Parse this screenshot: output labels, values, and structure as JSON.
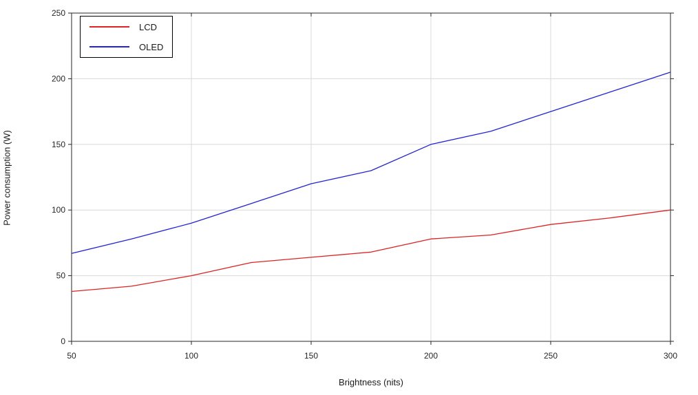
{
  "chart_data": {
    "type": "line",
    "title": "",
    "xlabel": "Brightness (nits)",
    "ylabel": "Power consumption (W)",
    "x": [
      50,
      75,
      100,
      125,
      150,
      175,
      200,
      225,
      250,
      275,
      300
    ],
    "series": [
      {
        "name": "LCD",
        "color": "#dd2222",
        "values": [
          38,
          42,
          50,
          60,
          64,
          68,
          78,
          81,
          89,
          94,
          100
        ]
      },
      {
        "name": "OLED",
        "color": "#2222dd",
        "values": [
          67,
          78,
          90,
          105,
          120,
          130,
          150,
          160,
          175,
          190,
          205
        ]
      }
    ],
    "xlim": [
      50,
      300
    ],
    "ylim": [
      0,
      250
    ],
    "xticks": [
      50,
      100,
      150,
      200,
      250,
      300
    ],
    "yticks": [
      0,
      50,
      100,
      150,
      200,
      250
    ],
    "grid": true,
    "legend_position": "top-left",
    "colors": {
      "background": "#ffffff",
      "grid": "#d9d9d9",
      "axis": "#262626",
      "tick_text": "#262626",
      "legend_border": "#000000"
    }
  }
}
